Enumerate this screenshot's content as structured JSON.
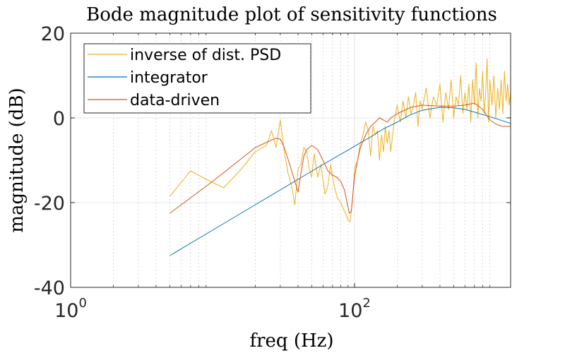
{
  "chart_data": {
    "type": "line",
    "title": "Bode magnitude plot of sensitivity functions",
    "xlabel": "freq (Hz)",
    "ylabel": "magnitude (dB)",
    "xscale": "log",
    "xlim": [
      1,
      1259
    ],
    "ylim": [
      -40,
      20
    ],
    "xticks": [
      {
        "value": 1,
        "base": "10",
        "exp": "0"
      },
      {
        "value": 100,
        "base": "10",
        "exp": "2"
      }
    ],
    "yticks": [
      {
        "value": -40,
        "label": "-40"
      },
      {
        "value": -20,
        "label": "-20"
      },
      {
        "value": 0,
        "label": "0"
      },
      {
        "value": 20,
        "label": "20"
      }
    ],
    "grid": true,
    "legend_position": "top-left",
    "series": [
      {
        "name": "inverse of dist. PSD",
        "color": "#EDB120",
        "x": [
          5,
          7,
          9,
          12,
          16,
          20,
          24,
          26,
          28,
          30,
          32,
          34,
          36,
          38,
          40,
          42,
          44,
          46,
          48,
          50,
          52,
          55,
          58,
          60,
          62,
          65,
          68,
          70,
          73,
          76,
          80,
          85,
          90,
          93,
          95,
          98,
          100,
          105,
          110,
          115,
          118,
          120,
          125,
          130,
          135,
          140,
          145,
          150,
          155,
          160,
          165,
          170,
          175,
          180,
          190,
          200,
          210,
          220,
          230,
          240,
          250,
          260,
          270,
          280,
          290,
          300,
          320,
          340,
          360,
          380,
          400,
          420,
          440,
          460,
          480,
          500,
          520,
          540,
          560,
          580,
          600,
          620,
          640,
          660,
          680,
          700,
          720,
          740,
          760,
          780,
          800,
          820,
          840,
          860,
          880,
          900,
          930,
          960,
          990,
          1020,
          1050,
          1080,
          1110,
          1140,
          1170,
          1200,
          1230,
          1259
        ],
        "y": [
          -18.5,
          -12.5,
          -14.5,
          -16.5,
          -12,
          -8,
          -6.5,
          -3,
          -7,
          -0.5,
          -8,
          -13,
          -16,
          -20.5,
          -12,
          -11,
          -7,
          -8,
          -12,
          -14,
          -8.5,
          -14,
          -11,
          -14.5,
          -18,
          -16,
          -11,
          -14,
          -17,
          -19,
          -20,
          -22,
          -24,
          -24.5,
          -22,
          -17,
          -12,
          -10,
          -6,
          -4,
          -2,
          -1,
          -3,
          -9,
          -2,
          -4,
          -3,
          -10,
          -4,
          -8,
          -2,
          -6,
          -3,
          -8,
          -1,
          3,
          -1,
          4,
          0,
          5,
          1,
          3,
          6,
          -2,
          4,
          2,
          7,
          0,
          5,
          3,
          8,
          -1,
          6,
          2,
          9,
          0,
          5,
          3,
          10,
          1,
          6,
          2,
          8,
          -1,
          9,
          3,
          13,
          0,
          7,
          4,
          11,
          1,
          6,
          14,
          -1,
          9,
          3,
          10,
          0,
          7,
          2,
          9,
          1,
          11,
          4,
          8,
          3,
          6
        ]
      },
      {
        "name": "integrator",
        "color": "#0072BD",
        "x": [
          5,
          10,
          20,
          40,
          60,
          80,
          100,
          130,
          160,
          200,
          250,
          300,
          400,
          500,
          600,
          800,
          1000,
          1259
        ],
        "y": [
          -32.5,
          -26.5,
          -20.5,
          -14.5,
          -11,
          -8.6,
          -6.7,
          -4.5,
          -2.6,
          -1,
          0.8,
          1.8,
          2.5,
          2.4,
          2,
          0.8,
          -0.2,
          -1.3
        ]
      },
      {
        "name": "data-driven",
        "color": "#D95319",
        "x": [
          5,
          10,
          20,
          25,
          28,
          30,
          32,
          35,
          38,
          40,
          42,
          44,
          46,
          50,
          55,
          60,
          65,
          70,
          75,
          80,
          85,
          90,
          92,
          95,
          98,
          100,
          105,
          110,
          120,
          130,
          140,
          150,
          160,
          170,
          180,
          200,
          250,
          300,
          400,
          500,
          600,
          700,
          800,
          900,
          1000,
          1100,
          1259
        ],
        "y": [
          -22.5,
          -15,
          -7,
          -5.5,
          -4.8,
          -5,
          -7,
          -11,
          -15,
          -17.5,
          -13,
          -9,
          -7.5,
          -6.5,
          -7.5,
          -10,
          -12.5,
          -13.5,
          -14,
          -15,
          -17,
          -21,
          -22.5,
          -22,
          -17,
          -14,
          -10,
          -7,
          -4,
          -2,
          -1,
          0,
          -0.5,
          -1,
          0,
          1,
          2.5,
          3,
          2.8,
          2.8,
          3,
          3.5,
          2,
          -0.5,
          -1.5,
          -2,
          -2
        ]
      }
    ]
  }
}
